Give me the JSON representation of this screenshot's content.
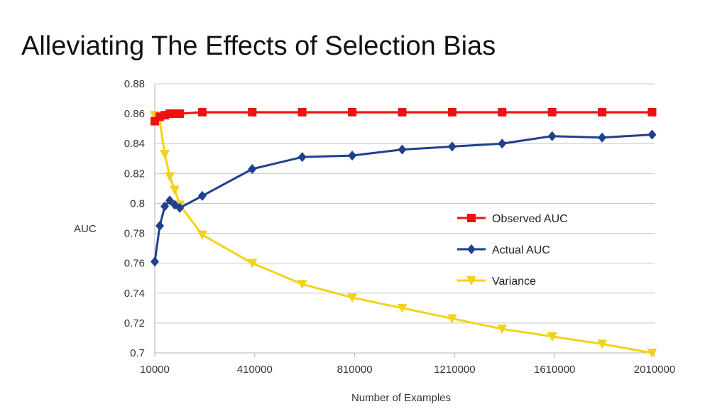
{
  "slide": {
    "title": "Alleviating The Effects of Selection Bias"
  },
  "chart_data": {
    "type": "line",
    "title": "Alleviating The Effects of Selection Bias",
    "xlabel": "Number of Examples",
    "ylabel": "AUC",
    "xlim": [
      10000,
      2010000
    ],
    "ylim": [
      0.7,
      0.88
    ],
    "x_ticks": [
      10000,
      410000,
      810000,
      1210000,
      1610000,
      2010000
    ],
    "y_ticks": [
      0.7,
      0.72,
      0.74,
      0.76,
      0.78,
      0.8,
      0.82,
      0.84,
      0.86,
      0.88
    ],
    "x_tick_labels": [
      "10000",
      "410000",
      "810000",
      "1210000",
      "1610000",
      "2010000"
    ],
    "y_tick_labels": [
      "0.7",
      "0.72",
      "0.74",
      "0.76",
      "0.78",
      "0.8",
      "0.82",
      "0.84",
      "0.86",
      "0.88"
    ],
    "grid": true,
    "legend_position": "center-right",
    "x": [
      10000,
      30000,
      50000,
      70000,
      90000,
      110000,
      200000,
      400000,
      600000,
      800000,
      1000000,
      1200000,
      1400000,
      1600000,
      1800000,
      2000000
    ],
    "series": [
      {
        "name": "Observed AUC",
        "color": "#ee1111",
        "marker": "square",
        "values": [
          0.855,
          0.858,
          0.859,
          0.86,
          0.86,
          0.86,
          0.861,
          0.861,
          0.861,
          0.861,
          0.861,
          0.861,
          0.861,
          0.861,
          0.861,
          0.861
        ]
      },
      {
        "name": "Actual AUC",
        "color": "#1f3f8f",
        "marker": "diamond",
        "values": [
          0.761,
          0.785,
          0.798,
          0.802,
          0.799,
          0.797,
          0.805,
          0.823,
          0.831,
          0.832,
          0.836,
          0.838,
          0.84,
          0.845,
          0.844,
          0.846
        ]
      },
      {
        "name": "Variance",
        "color": "#f2d21a",
        "marker": "triangle-down",
        "values": [
          0.859,
          0.855,
          0.833,
          0.818,
          0.809,
          0.799,
          0.779,
          0.76,
          0.746,
          0.737,
          0.73,
          0.723,
          0.716,
          0.711,
          0.706,
          0.7
        ]
      }
    ]
  }
}
